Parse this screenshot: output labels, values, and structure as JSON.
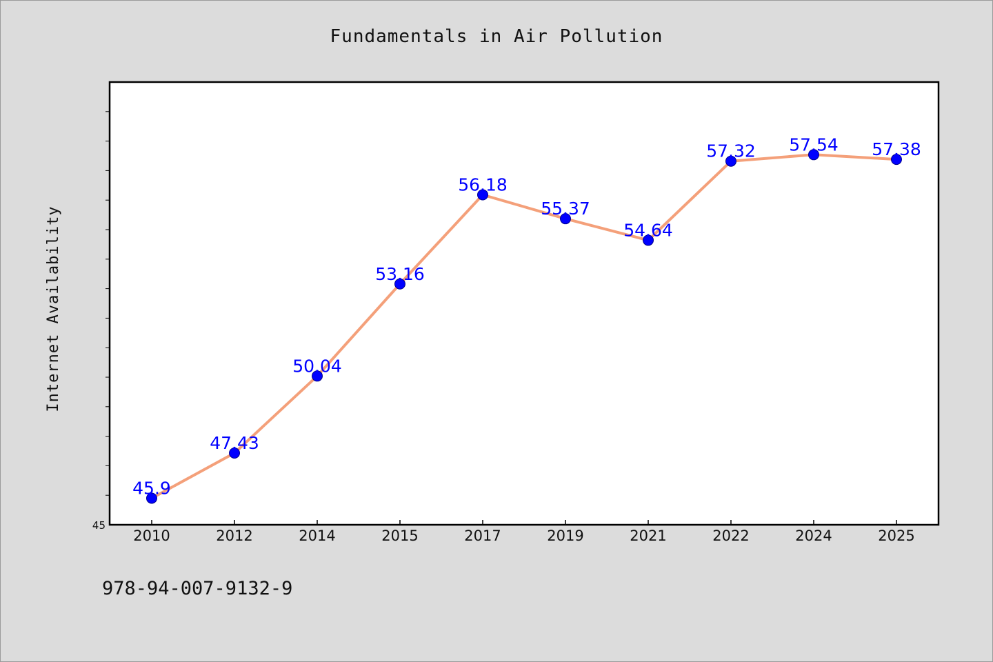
{
  "chart_data": {
    "type": "line",
    "title": "Fundamentals in Air Pollution",
    "xlabel": "",
    "ylabel": "Internet Availability",
    "categories": [
      "2010",
      "2012",
      "2014",
      "2015",
      "2017",
      "2019",
      "2021",
      "2022",
      "2024",
      "2025"
    ],
    "series": [
      {
        "values": [
          45.9,
          47.43,
          50.04,
          53.16,
          56.18,
          55.37,
          54.64,
          57.32,
          57.54,
          57.38
        ],
        "data_labels": [
          "45.9",
          "47.43",
          "50.04",
          "53.16",
          "56.18",
          "55.37",
          "54.64",
          "57.32",
          "57.54",
          "57.38"
        ]
      }
    ],
    "ylim": [
      45,
      60
    ],
    "y_tick_labels": [
      "45"
    ],
    "grid": false,
    "line_color": "#f4a07a",
    "marker_color": "#0000ff",
    "label_color": "#0000ff"
  },
  "footer": {
    "isbn": "978-94-007-9132-9"
  }
}
